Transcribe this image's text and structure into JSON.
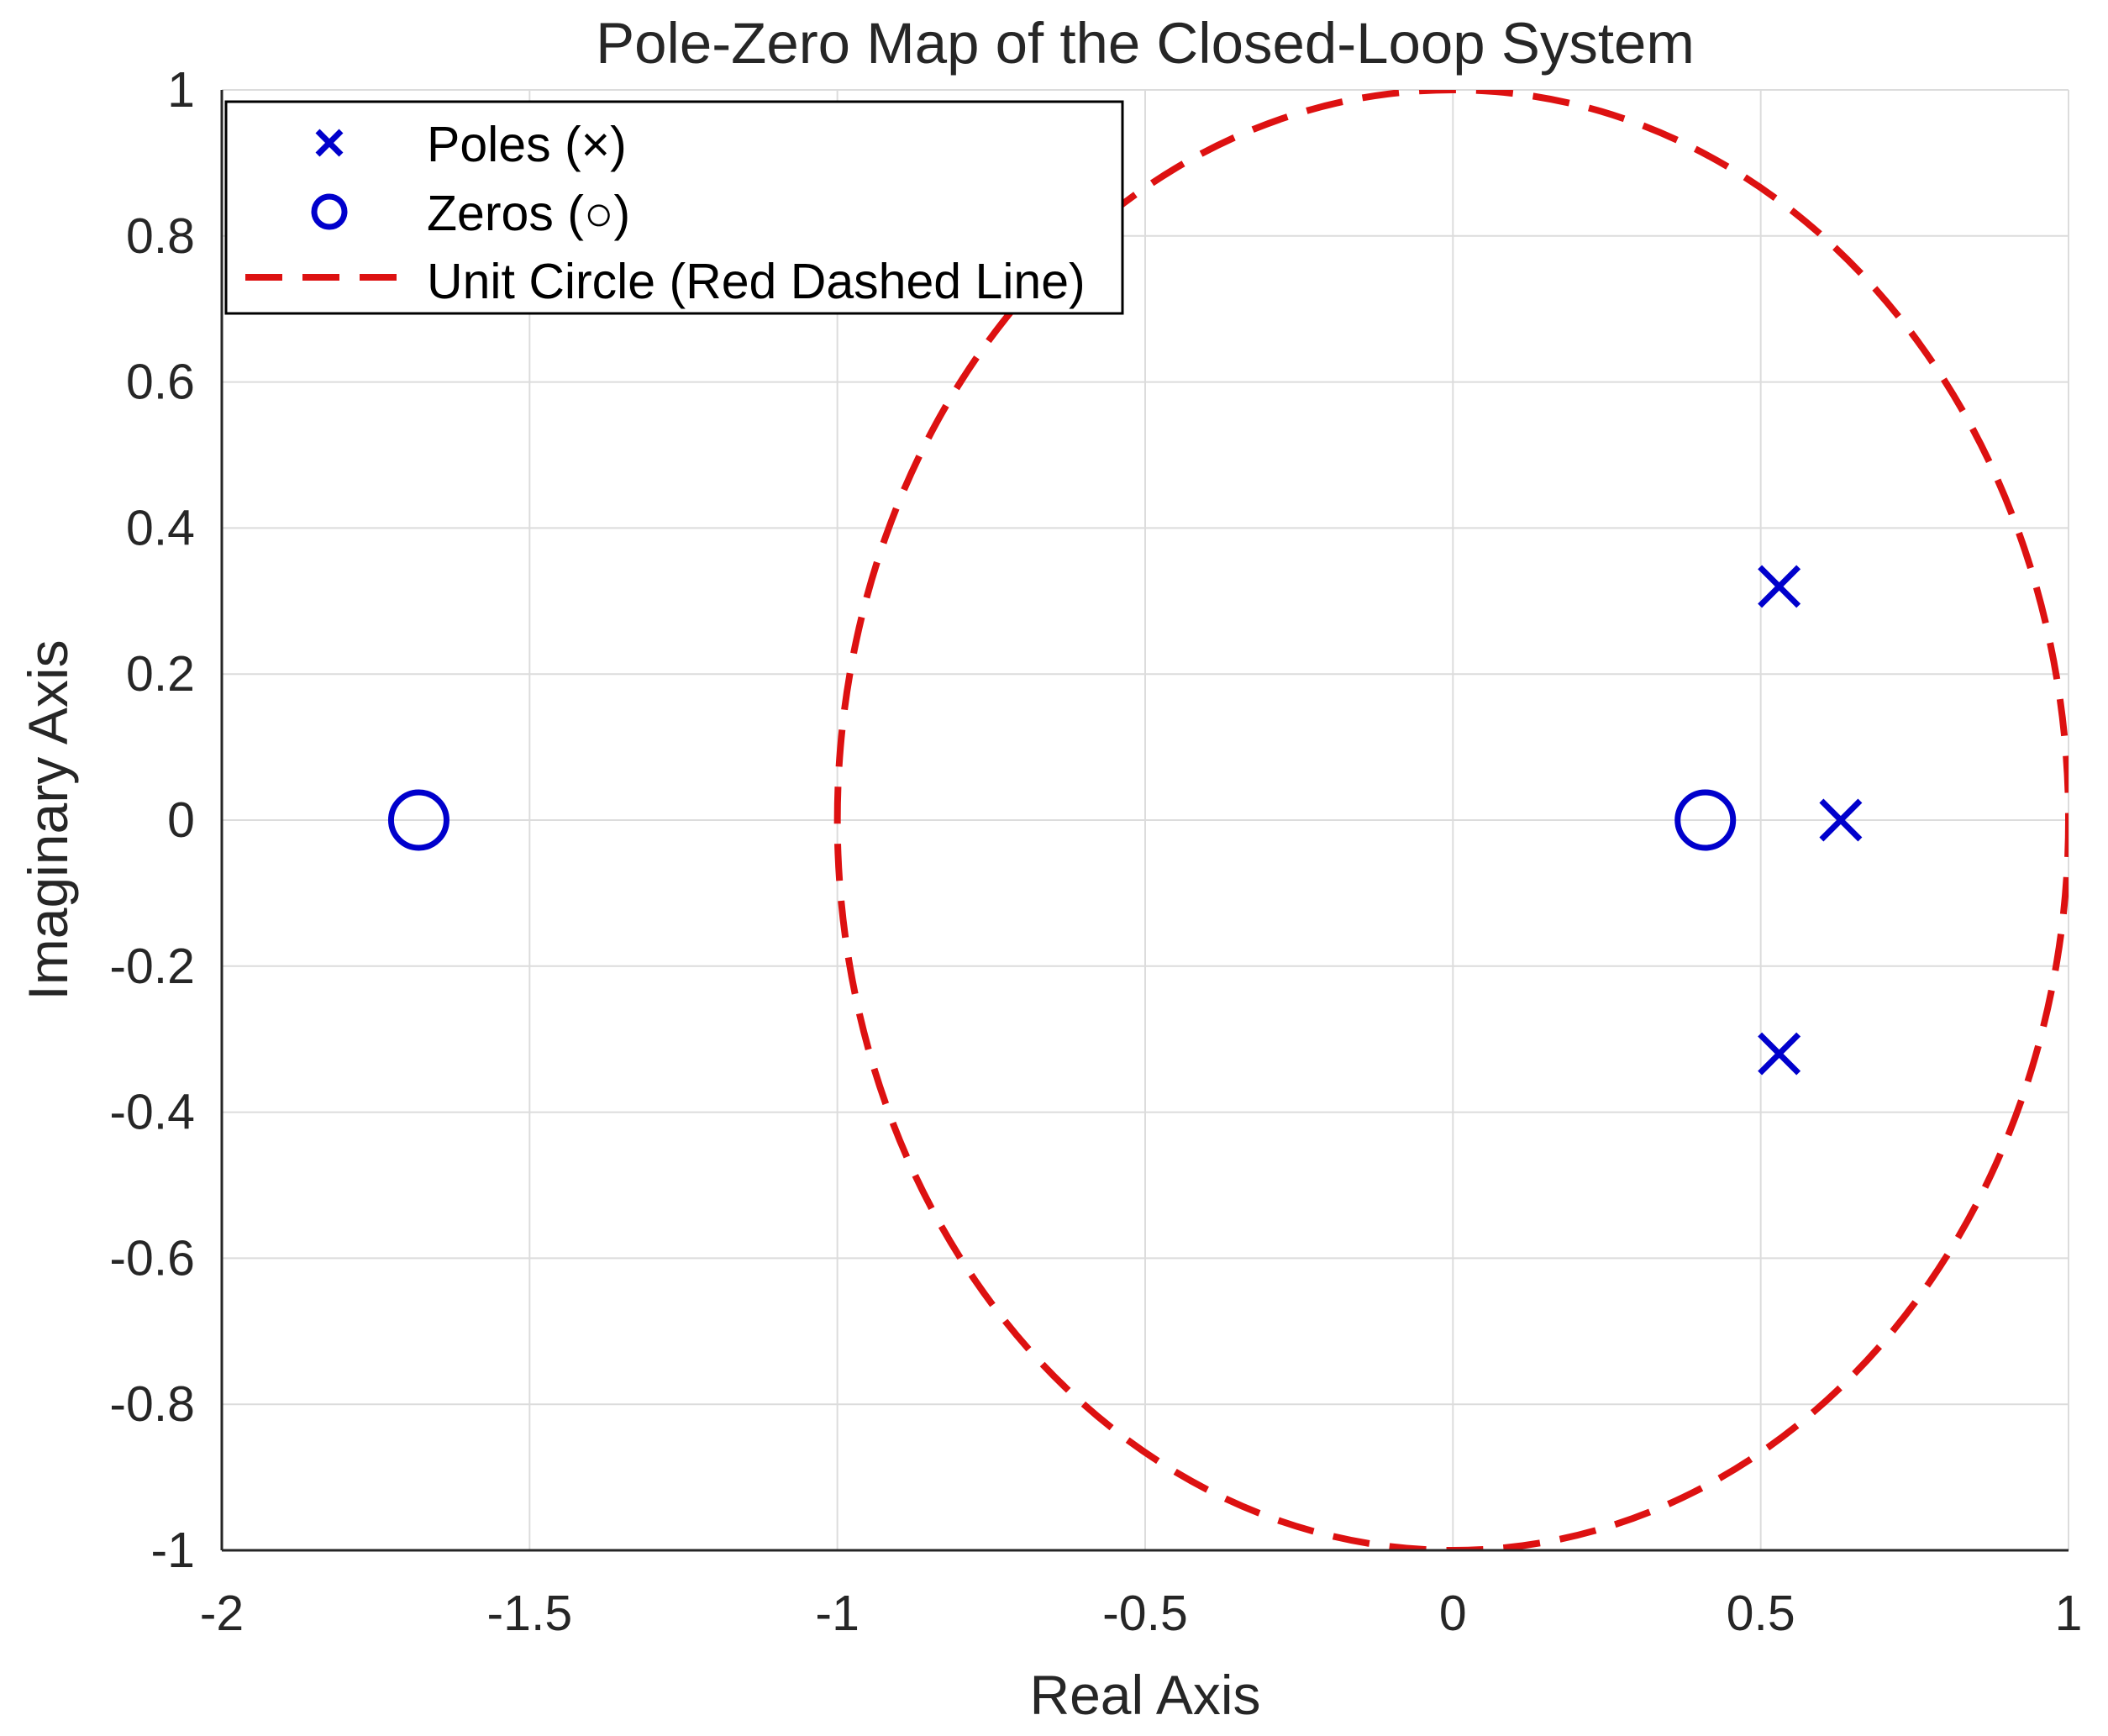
{
  "chart_data": {
    "type": "scatter",
    "title": "Pole-Zero Map of the Closed-Loop System",
    "xlabel": "Real Axis",
    "ylabel": "Imaginary Axis",
    "xlim": [
      -2,
      1
    ],
    "ylim": [
      -1,
      1
    ],
    "grid": true,
    "xticks": [
      -2,
      -1.5,
      -1,
      -0.5,
      0,
      0.5,
      1
    ],
    "xtick_labels": [
      "-2",
      "-1.5",
      "-1",
      "-0.5",
      "0",
      "0.5",
      "1"
    ],
    "yticks": [
      -1,
      -0.8,
      -0.6,
      -0.4,
      -0.2,
      0,
      0.2,
      0.4,
      0.6,
      0.8,
      1
    ],
    "ytick_labels": [
      "-1",
      "-0.8",
      "-0.6",
      "-0.4",
      "-0.2",
      "0",
      "0.2",
      "0.4",
      "0.6",
      "0.8",
      "1"
    ],
    "series": [
      {
        "name": "Poles (×)",
        "marker": "x",
        "color": "#0000cc",
        "points": [
          {
            "re": 0.53,
            "im": 0.32
          },
          {
            "re": 0.53,
            "im": -0.32
          },
          {
            "re": 0.63,
            "im": 0.0
          }
        ]
      },
      {
        "name": "Zeros (○)",
        "marker": "o",
        "color": "#0000cc",
        "points": [
          {
            "re": -1.68,
            "im": 0.0
          },
          {
            "re": 0.41,
            "im": 0.0
          }
        ]
      },
      {
        "name": "Unit Circle (Red Dashed Line)",
        "marker": "dashed-line",
        "color": "#dd1111",
        "center": {
          "re": 0,
          "im": 0
        },
        "radius": 1
      }
    ],
    "legend": {
      "position": "top-left",
      "entries": [
        "Poles (×)",
        "Zeros (○)",
        "Unit Circle (Red Dashed Line)"
      ]
    }
  }
}
